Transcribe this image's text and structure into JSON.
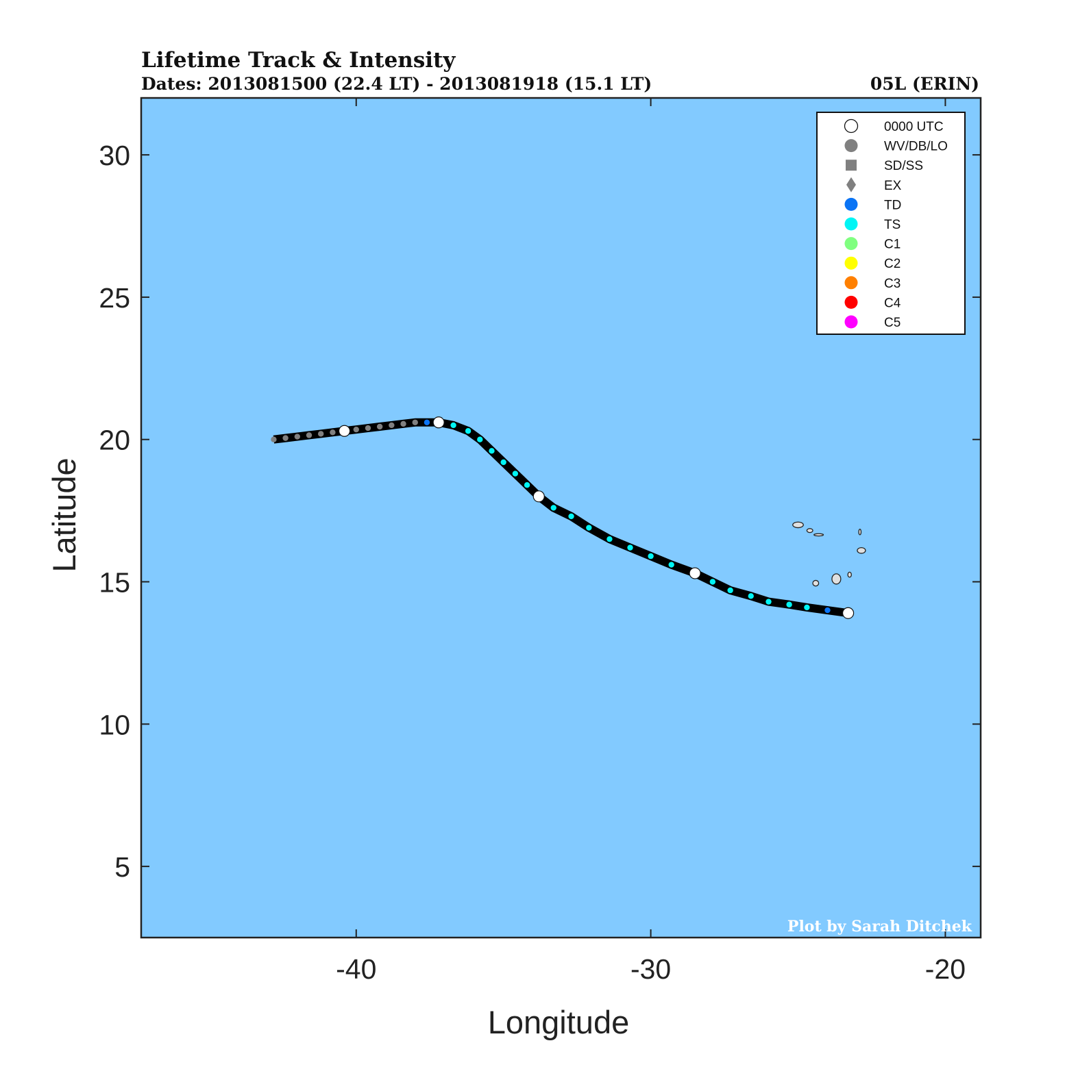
{
  "chart_data": {
    "type": "scatter",
    "title": "Lifetime Track & Intensity",
    "subtitle_left": "Dates: 2013081500 (22.4 LT) - 2013081918 (15.1 LT)",
    "subtitle_right": "05L (ERIN)",
    "xlabel": "Longitude",
    "ylabel": "Latitude",
    "xlim": [
      -47.3,
      -18.8
    ],
    "ylim": [
      2.5,
      32.0
    ],
    "xticks": [
      -40,
      -30,
      -20
    ],
    "yticks": [
      5,
      10,
      15,
      20,
      25,
      30
    ],
    "xtick_labels": [
      "-40",
      "-30",
      "-20"
    ],
    "ytick_labels": [
      "5",
      "10",
      "15",
      "20",
      "25",
      "30"
    ],
    "background_color": "#82caff",
    "track_color": "#000000",
    "legend_position": "top-right",
    "legend": [
      {
        "label": "0000 UTC",
        "shape": "circle-open",
        "color": "#ffffff"
      },
      {
        "label": "WV/DB/LO",
        "shape": "circle",
        "color": "#808080"
      },
      {
        "label": "SD/SS",
        "shape": "square",
        "color": "#808080"
      },
      {
        "label": "EX",
        "shape": "diamond",
        "color": "#808080"
      },
      {
        "label": "TD",
        "shape": "circle",
        "color": "#0a74f5"
      },
      {
        "label": "TS",
        "shape": "circle",
        "color": "#00f5f5"
      },
      {
        "label": "C1",
        "shape": "circle",
        "color": "#80ff80"
      },
      {
        "label": "C2",
        "shape": "circle",
        "color": "#ffff00"
      },
      {
        "label": "C3",
        "shape": "circle",
        "color": "#ff8000"
      },
      {
        "label": "C4",
        "shape": "circle",
        "color": "#ff0000"
      },
      {
        "label": "C5",
        "shape": "circle",
        "color": "#ff00ff"
      }
    ],
    "series": [
      {
        "category": "TD",
        "points": [
          {
            "lon": -23.3,
            "lat": 13.9,
            "utc0000": true
          },
          {
            "lon": -24.0,
            "lat": 14.0,
            "utc0000": false
          }
        ]
      },
      {
        "category": "TS",
        "points": [
          {
            "lon": -24.7,
            "lat": 14.1,
            "utc0000": false
          },
          {
            "lon": -25.3,
            "lat": 14.2,
            "utc0000": false
          },
          {
            "lon": -26.0,
            "lat": 14.3,
            "utc0000": false
          },
          {
            "lon": -26.6,
            "lat": 14.5,
            "utc0000": false
          },
          {
            "lon": -27.3,
            "lat": 14.7,
            "utc0000": false
          },
          {
            "lon": -27.9,
            "lat": 15.0,
            "utc0000": false
          },
          {
            "lon": -28.5,
            "lat": 15.3,
            "utc0000": true
          },
          {
            "lon": -29.3,
            "lat": 15.6,
            "utc0000": false
          },
          {
            "lon": -30.0,
            "lat": 15.9,
            "utc0000": false
          },
          {
            "lon": -30.7,
            "lat": 16.2,
            "utc0000": false
          },
          {
            "lon": -31.4,
            "lat": 16.5,
            "utc0000": false
          },
          {
            "lon": -32.1,
            "lat": 16.9,
            "utc0000": false
          },
          {
            "lon": -32.7,
            "lat": 17.3,
            "utc0000": false
          },
          {
            "lon": -33.3,
            "lat": 17.6,
            "utc0000": false
          },
          {
            "lon": -33.8,
            "lat": 18.0,
            "utc0000": true
          },
          {
            "lon": -34.2,
            "lat": 18.4,
            "utc0000": false
          },
          {
            "lon": -34.6,
            "lat": 18.8,
            "utc0000": false
          },
          {
            "lon": -35.0,
            "lat": 19.2,
            "utc0000": false
          },
          {
            "lon": -35.4,
            "lat": 19.6,
            "utc0000": false
          },
          {
            "lon": -35.8,
            "lat": 20.0,
            "utc0000": false
          },
          {
            "lon": -36.2,
            "lat": 20.3,
            "utc0000": false
          },
          {
            "lon": -36.7,
            "lat": 20.5,
            "utc0000": false
          },
          {
            "lon": -37.2,
            "lat": 20.6,
            "utc0000": true
          }
        ]
      },
      {
        "category": "TD",
        "points": [
          {
            "lon": -37.6,
            "lat": 20.6,
            "utc0000": false
          }
        ]
      },
      {
        "category": "WV/DB/LO",
        "points": [
          {
            "lon": -38.0,
            "lat": 20.6,
            "utc0000": false
          },
          {
            "lon": -38.4,
            "lat": 20.55,
            "utc0000": false
          },
          {
            "lon": -38.8,
            "lat": 20.5,
            "utc0000": false
          },
          {
            "lon": -39.2,
            "lat": 20.45,
            "utc0000": false
          },
          {
            "lon": -39.6,
            "lat": 20.4,
            "utc0000": false
          },
          {
            "lon": -40.0,
            "lat": 20.35,
            "utc0000": false
          },
          {
            "lon": -40.4,
            "lat": 20.3,
            "utc0000": true
          },
          {
            "lon": -40.8,
            "lat": 20.25,
            "utc0000": false
          },
          {
            "lon": -41.2,
            "lat": 20.2,
            "utc0000": false
          },
          {
            "lon": -41.6,
            "lat": 20.15,
            "utc0000": false
          },
          {
            "lon": -42.0,
            "lat": 20.1,
            "utc0000": false
          },
          {
            "lon": -42.4,
            "lat": 20.05,
            "utc0000": false
          },
          {
            "lon": -42.8,
            "lat": 20.0,
            "utc0000": false
          }
        ]
      }
    ],
    "islands": [
      {
        "lon": -25.0,
        "lat": 17.0,
        "rx": 0.18,
        "ry": 0.1
      },
      {
        "lon": -24.6,
        "lat": 16.8,
        "rx": 0.1,
        "ry": 0.07
      },
      {
        "lon": -24.3,
        "lat": 16.65,
        "rx": 0.16,
        "ry": 0.04
      },
      {
        "lon": -22.9,
        "lat": 16.75,
        "rx": 0.04,
        "ry": 0.1
      },
      {
        "lon": -22.85,
        "lat": 16.1,
        "rx": 0.14,
        "ry": 0.1
      },
      {
        "lon": -23.7,
        "lat": 15.1,
        "rx": 0.15,
        "ry": 0.18
      },
      {
        "lon": -23.25,
        "lat": 15.25,
        "rx": 0.06,
        "ry": 0.09
      },
      {
        "lon": -24.4,
        "lat": 14.95,
        "rx": 0.1,
        "ry": 0.1
      }
    ],
    "credit": "Plot by Sarah Ditchek"
  }
}
